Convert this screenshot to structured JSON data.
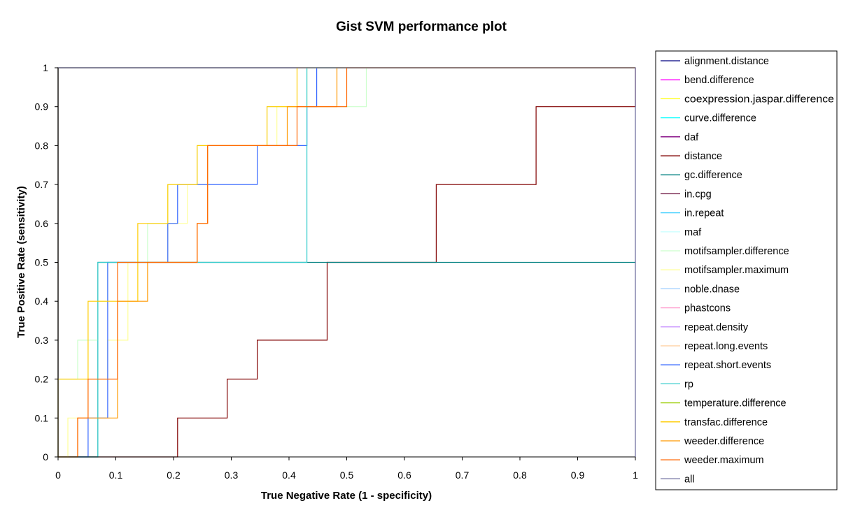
{
  "chart_data": {
    "type": "line",
    "title": "Gist SVM performance plot",
    "xlabel": "True Negative Rate (1 - specificity)",
    "ylabel": "True Positive Rate (sensitivity)",
    "xlim": [
      0,
      1
    ],
    "ylim": [
      0,
      1
    ],
    "x_ticks": [
      "0",
      "0.1",
      "0.2",
      "0.3",
      "0.4",
      "0.5",
      "0.6",
      "0.7",
      "0.8",
      "0.9",
      "1"
    ],
    "y_ticks": [
      "0",
      "0.1",
      "0.2",
      "0.3",
      "0.4",
      "0.5",
      "0.6",
      "0.7",
      "0.8",
      "0.9",
      "1"
    ],
    "grid": false,
    "legend_position": "right",
    "series": [
      {
        "name": "alignment.distance",
        "color": "#000080",
        "x": [
          0,
          0,
          1
        ],
        "y": [
          0,
          1,
          1
        ]
      },
      {
        "name": "bend.difference",
        "color": "#ff00ff",
        "x": [
          0,
          0,
          1
        ],
        "y": [
          0,
          1,
          1
        ]
      },
      {
        "name": "coexpression.jaspar.difference",
        "color": "#ffff00",
        "x": [
          0,
          0,
          1
        ],
        "y": [
          0,
          1,
          1
        ]
      },
      {
        "name": "curve.difference",
        "color": "#00ffff",
        "x": [
          0,
          0,
          1
        ],
        "y": [
          0,
          1,
          1
        ]
      },
      {
        "name": "daf",
        "color": "#800080",
        "x": [
          0,
          0,
          1
        ],
        "y": [
          0,
          1,
          1
        ]
      },
      {
        "name": "distance",
        "color": "#800000",
        "x": [
          0,
          0.207,
          0.207,
          0.293,
          0.293,
          0.345,
          0.345,
          0.466,
          0.466,
          0.655,
          0.655,
          0.828,
          0.828,
          1,
          1
        ],
        "y": [
          0,
          0,
          0.1,
          0.1,
          0.2,
          0.2,
          0.3,
          0.3,
          0.5,
          0.5,
          0.7,
          0.7,
          0.9,
          0.9,
          1
        ]
      },
      {
        "name": "gc.difference",
        "color": "#008080",
        "x": [
          0,
          0.069,
          0.069,
          1
        ],
        "y": [
          0,
          0,
          0.5,
          0.5
        ]
      },
      {
        "name": "in.cpg",
        "color": "#600030",
        "x": [
          0,
          0,
          1
        ],
        "y": [
          0,
          1,
          1
        ]
      },
      {
        "name": "in.repeat",
        "color": "#33ccff",
        "x": [
          0,
          0,
          1
        ],
        "y": [
          0,
          1,
          1
        ]
      },
      {
        "name": "maf",
        "color": "#ccffff",
        "x": [
          0,
          0,
          1
        ],
        "y": [
          0,
          1,
          1
        ]
      },
      {
        "name": "motifsampler.difference",
        "color": "#ccffcc",
        "x": [
          0,
          0.034,
          0.034,
          0.069,
          0.069,
          0.086,
          0.086,
          0.155,
          0.155,
          0.19,
          0.19,
          0.241,
          0.241,
          0.259,
          0.259,
          0.362,
          0.362,
          0.414,
          0.414,
          0.448,
          0.448,
          0.534,
          0.534
        ],
        "y": [
          0.2,
          0.2,
          0.3,
          0.3,
          0.4,
          0.4,
          0.5,
          0.5,
          0.6,
          0.6,
          0.7,
          0.7,
          0.8,
          0.8,
          0.8,
          0.8,
          0.9,
          0.9,
          0.9,
          0.9,
          0.9,
          0.9,
          1
        ]
      },
      {
        "name": "motifsampler.maximum",
        "color": "#ffff99",
        "x": [
          0,
          0.017,
          0.017,
          0.052,
          0.052,
          0.086,
          0.086,
          0.121,
          0.121,
          0.19,
          0.19,
          0.224,
          0.224,
          0.259,
          0.259,
          0.379,
          0.379,
          0.431,
          0.431
        ],
        "y": [
          0,
          0,
          0.1,
          0.1,
          0.2,
          0.2,
          0.3,
          0.3,
          0.5,
          0.5,
          0.6,
          0.6,
          0.7,
          0.7,
          0.8,
          0.8,
          0.9,
          0.9,
          1
        ]
      },
      {
        "name": "noble.dnase",
        "color": "#99ccff",
        "x": [
          0,
          0,
          1
        ],
        "y": [
          0,
          1,
          1
        ]
      },
      {
        "name": "phastcons",
        "color": "#ff99cc",
        "x": [
          0,
          0,
          1
        ],
        "y": [
          0,
          1,
          1
        ]
      },
      {
        "name": "repeat.density",
        "color": "#cc99ff",
        "x": [
          0,
          0,
          1
        ],
        "y": [
          0,
          1,
          1
        ]
      },
      {
        "name": "repeat.long.events",
        "color": "#ffcc99",
        "x": [
          0,
          0,
          1
        ],
        "y": [
          0,
          1,
          1
        ]
      },
      {
        "name": "repeat.short.events",
        "color": "#3366ff",
        "x": [
          0,
          0.052,
          0.052,
          0.086,
          0.086,
          0.19,
          0.19,
          0.207,
          0.207,
          0.345,
          0.345,
          0.431,
          0.431,
          0.448,
          0.448,
          1
        ],
        "y": [
          0,
          0,
          0.1,
          0.1,
          0.5,
          0.5,
          0.6,
          0.6,
          0.7,
          0.7,
          0.8,
          0.8,
          0.9,
          0.9,
          1,
          1
        ]
      },
      {
        "name": "rp",
        "color": "#33cccc",
        "x": [
          0,
          0.069,
          0.069,
          0.431,
          0.431,
          1
        ],
        "y": [
          0,
          0,
          0.5,
          0.5,
          1,
          1
        ]
      },
      {
        "name": "temperature.difference",
        "color": "#99cc00",
        "x": [
          0,
          0,
          1
        ],
        "y": [
          0,
          1,
          1
        ]
      },
      {
        "name": "transfac.difference",
        "color": "#ffcc00",
        "x": [
          0,
          0,
          0.052,
          0.052,
          0.138,
          0.138,
          0.19,
          0.19,
          0.241,
          0.241,
          0.362,
          0.362,
          0.414,
          0.414,
          0.483,
          0.483,
          1
        ],
        "y": [
          0,
          0.2,
          0.2,
          0.4,
          0.4,
          0.6,
          0.6,
          0.7,
          0.7,
          0.8,
          0.8,
          0.9,
          0.9,
          1,
          1,
          1,
          1
        ]
      },
      {
        "name": "weeder.difference",
        "color": "#ff9900",
        "x": [
          0,
          0.034,
          0.034,
          0.103,
          0.103,
          0.155,
          0.155,
          0.19,
          0.19,
          0.241,
          0.241,
          0.259,
          0.259,
          0.397,
          0.397,
          0.483,
          0.483,
          1
        ],
        "y": [
          0,
          0,
          0.1,
          0.1,
          0.4,
          0.4,
          0.5,
          0.5,
          0.5,
          0.5,
          0.6,
          0.6,
          0.8,
          0.8,
          0.9,
          0.9,
          1,
          1
        ]
      },
      {
        "name": "weeder.maximum",
        "color": "#ff6600",
        "x": [
          0,
          0.034,
          0.034,
          0.052,
          0.052,
          0.103,
          0.103,
          0.241,
          0.241,
          0.259,
          0.259,
          0.414,
          0.414,
          0.5,
          0.5,
          1
        ],
        "y": [
          0,
          0,
          0.1,
          0.1,
          0.2,
          0.2,
          0.5,
          0.5,
          0.6,
          0.6,
          0.8,
          0.8,
          0.9,
          0.9,
          1,
          1
        ]
      },
      {
        "name": "all",
        "color": "#666699",
        "x": [
          0,
          0,
          1,
          1
        ],
        "y": [
          0,
          1,
          1,
          0
        ]
      }
    ]
  }
}
